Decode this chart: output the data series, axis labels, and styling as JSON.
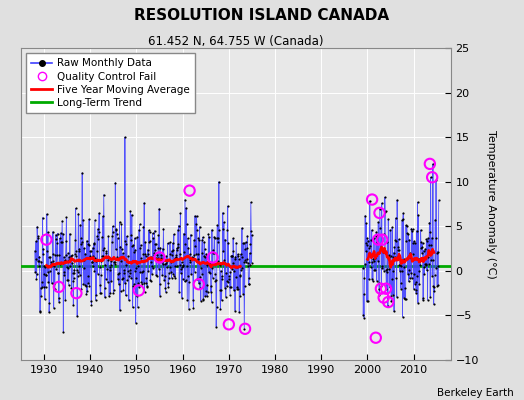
{
  "title": "RESOLUTION ISLAND CANADA",
  "subtitle": "61.452 N, 64.755 W (Canada)",
  "ylabel": "Temperature Anomaly (°C)",
  "attribution": "Berkeley Earth",
  "xlim": [
    1925,
    2018
  ],
  "ylim": [
    -10,
    25
  ],
  "yticks": [
    -10,
    -5,
    0,
    5,
    10,
    15,
    20,
    25
  ],
  "xticks": [
    1930,
    1940,
    1950,
    1960,
    1970,
    1980,
    1990,
    2000,
    2010
  ],
  "bg_color": "#e0e0e0",
  "plot_bg_color": "#e8e8e8",
  "grid_color": "#ffffff",
  "long_term_trend_value": 0.5,
  "seed": 42,
  "qc_fail_points": [
    [
      1930.5,
      3.5
    ],
    [
      1933.2,
      -1.8
    ],
    [
      1937.0,
      -2.5
    ],
    [
      1950.5,
      -2.2
    ],
    [
      1955.0,
      1.5
    ],
    [
      1961.5,
      9.0
    ],
    [
      1963.5,
      -1.5
    ],
    [
      1966.5,
      1.5
    ],
    [
      1970.0,
      -6.0
    ],
    [
      1973.5,
      -6.5
    ],
    [
      2001.0,
      8.0
    ],
    [
      2001.8,
      -7.5
    ],
    [
      2002.3,
      3.5
    ],
    [
      2002.6,
      6.5
    ],
    [
      2002.9,
      -2.0
    ],
    [
      2003.2,
      3.5
    ],
    [
      2003.5,
      -3.0
    ],
    [
      2004.0,
      -2.0
    ],
    [
      2004.5,
      -3.5
    ],
    [
      2013.5,
      12.0
    ],
    [
      2014.0,
      10.5
    ]
  ]
}
